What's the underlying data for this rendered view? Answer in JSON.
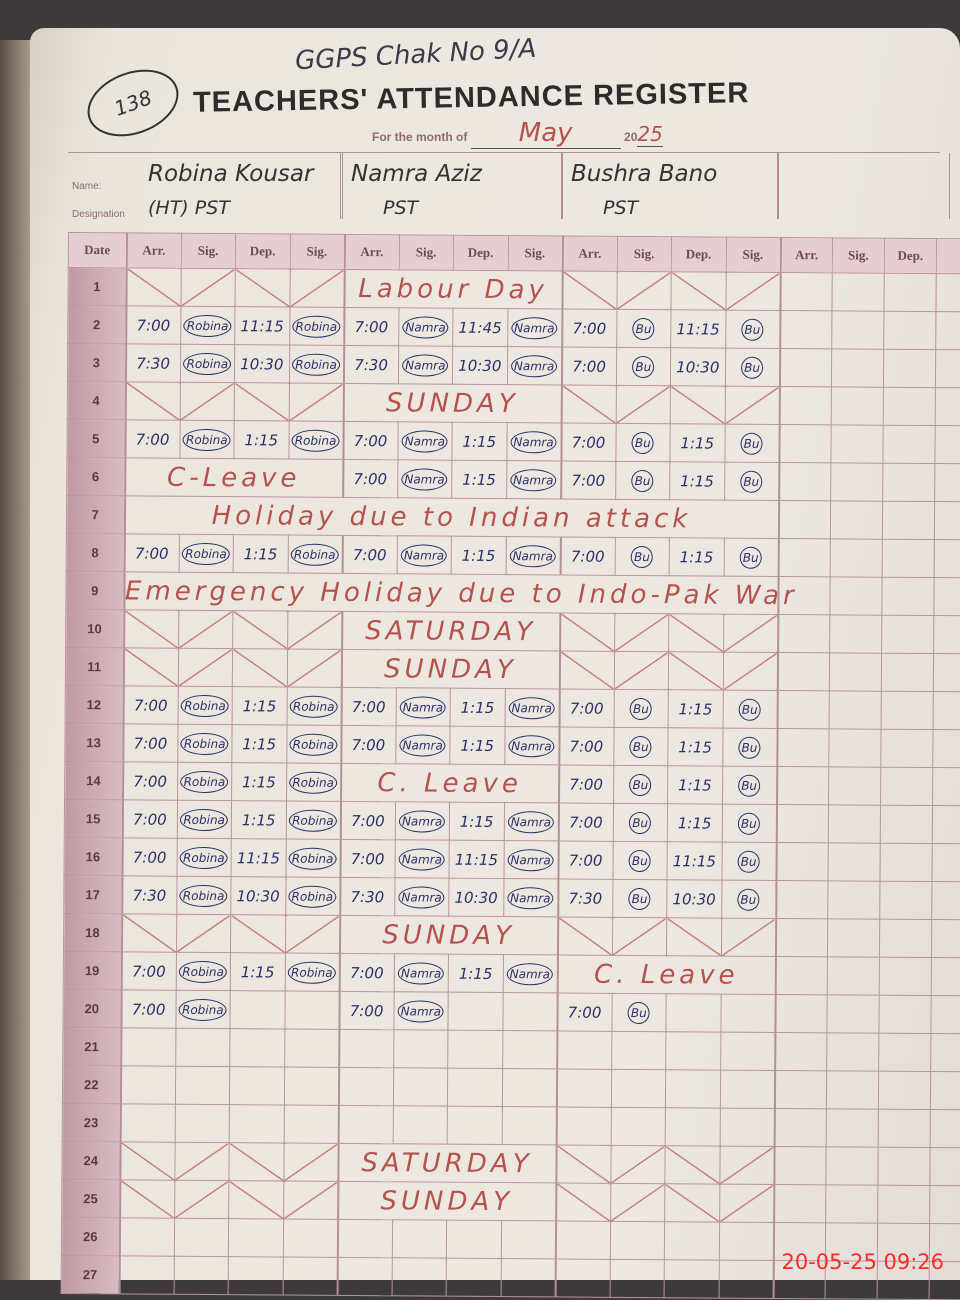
{
  "header": {
    "school": "GGPS Chak No 9/A",
    "register_no": "138",
    "title": "TEACHERS' ATTENDANCE REGISTER",
    "month_label": "For the month of",
    "month": "May",
    "year_prefix": "20",
    "year": "25",
    "name_label": "Name:",
    "designation_label": "Designation"
  },
  "teachers": [
    {
      "name": "Robina Kousar",
      "designation": "(HT) PST"
    },
    {
      "name": "Namra Aziz",
      "designation": "PST"
    },
    {
      "name": "Bushra Bano",
      "designation": "PST"
    },
    {
      "name": "",
      "designation": ""
    }
  ],
  "columns": {
    "date": "Date",
    "group": [
      "Arr.",
      "Sig.",
      "Dep.",
      "Sig."
    ],
    "last_group": [
      "Arr.",
      "Sig.",
      "Dep."
    ]
  },
  "rows": [
    {
      "date": "1",
      "segs": [
        {
          "x": 4
        },
        {
          "note": "Labour Day",
          "span": 4
        },
        {
          "x": 4
        }
      ]
    },
    {
      "date": "2",
      "segs": [
        {
          "v": [
            "7:00",
            "Robina",
            "11:15",
            "Robina"
          ]
        },
        {
          "v": [
            "7:00",
            "Namra",
            "11:45",
            "Namra"
          ]
        },
        {
          "v": [
            "7:00",
            "Bu",
            "11:15",
            "Bu"
          ]
        }
      ]
    },
    {
      "date": "3",
      "segs": [
        {
          "v": [
            "7:30",
            "Robina",
            "10:30",
            "Robina"
          ]
        },
        {
          "v": [
            "7:30",
            "Namra",
            "10:30",
            "Namra"
          ]
        },
        {
          "v": [
            "7:00",
            "Bu",
            "10:30",
            "Bu"
          ]
        }
      ]
    },
    {
      "date": "4",
      "segs": [
        {
          "x": 4
        },
        {
          "note": "SUNDAY",
          "span": 4
        },
        {
          "x": 4
        }
      ]
    },
    {
      "date": "5",
      "segs": [
        {
          "v": [
            "7:00",
            "Robina",
            "1:15",
            "Robina"
          ]
        },
        {
          "v": [
            "7:00",
            "Namra",
            "1:15",
            "Namra"
          ]
        },
        {
          "v": [
            "7:00",
            "Bu",
            "1:15",
            "Bu"
          ]
        }
      ]
    },
    {
      "date": "6",
      "segs": [
        {
          "note": "C-Leave",
          "span": 4
        },
        {
          "v": [
            "7:00",
            "Namra",
            "1:15",
            "Namra"
          ]
        },
        {
          "v": [
            "7:00",
            "Bu",
            "1:15",
            "Bu"
          ]
        }
      ]
    },
    {
      "date": "7",
      "segs": [
        {
          "note": "Holiday due to Indian attack",
          "span": 12
        }
      ]
    },
    {
      "date": "8",
      "segs": [
        {
          "v": [
            "7:00",
            "Robina",
            "1:15",
            "Robina"
          ]
        },
        {
          "v": [
            "7:00",
            "Namra",
            "1:15",
            "Namra"
          ]
        },
        {
          "v": [
            "7:00",
            "Bu",
            "1:15",
            "Bu"
          ]
        }
      ]
    },
    {
      "date": "9",
      "segs": [
        {
          "note": "Emergency Holiday due to Indo-Pak War",
          "span": 12
        }
      ]
    },
    {
      "date": "10",
      "segs": [
        {
          "x": 4
        },
        {
          "note": "SATURDAY",
          "span": 4
        },
        {
          "x": 4
        }
      ]
    },
    {
      "date": "11",
      "segs": [
        {
          "x": 4
        },
        {
          "note": "SUNDAY",
          "span": 4
        },
        {
          "x": 4
        }
      ]
    },
    {
      "date": "12",
      "segs": [
        {
          "v": [
            "7:00",
            "Robina",
            "1:15",
            "Robina"
          ]
        },
        {
          "v": [
            "7:00",
            "Namra",
            "1:15",
            "Namra"
          ]
        },
        {
          "v": [
            "7:00",
            "Bu",
            "1:15",
            "Bu"
          ]
        }
      ]
    },
    {
      "date": "13",
      "segs": [
        {
          "v": [
            "7:00",
            "Robina",
            "1:15",
            "Robina"
          ]
        },
        {
          "v": [
            "7:00",
            "Namra",
            "1:15",
            "Namra"
          ]
        },
        {
          "v": [
            "7:00",
            "Bu",
            "1:15",
            "Bu"
          ]
        }
      ]
    },
    {
      "date": "14",
      "segs": [
        {
          "v": [
            "7:00",
            "Robina",
            "1:15",
            "Robina"
          ]
        },
        {
          "note": "C. Leave",
          "span": 4
        },
        {
          "v": [
            "7:00",
            "Bu",
            "1:15",
            "Bu"
          ]
        }
      ]
    },
    {
      "date": "15",
      "segs": [
        {
          "v": [
            "7:00",
            "Robina",
            "1:15",
            "Robina"
          ]
        },
        {
          "v": [
            "7:00",
            "Namra",
            "1:15",
            "Namra"
          ]
        },
        {
          "v": [
            "7:00",
            "Bu",
            "1:15",
            "Bu"
          ]
        }
      ]
    },
    {
      "date": "16",
      "segs": [
        {
          "v": [
            "7:00",
            "Robina",
            "11:15",
            "Robina"
          ]
        },
        {
          "v": [
            "7:00",
            "Namra",
            "11:15",
            "Namra"
          ]
        },
        {
          "v": [
            "7:00",
            "Bu",
            "11:15",
            "Bu"
          ]
        }
      ]
    },
    {
      "date": "17",
      "segs": [
        {
          "v": [
            "7:30",
            "Robina",
            "10:30",
            "Robina"
          ]
        },
        {
          "v": [
            "7:30",
            "Namra",
            "10:30",
            "Namra"
          ]
        },
        {
          "v": [
            "7:30",
            "Bu",
            "10:30",
            "Bu"
          ]
        }
      ]
    },
    {
      "date": "18",
      "segs": [
        {
          "x": 4
        },
        {
          "note": "SUNDAY",
          "span": 4
        },
        {
          "x": 4
        }
      ]
    },
    {
      "date": "19",
      "segs": [
        {
          "v": [
            "7:00",
            "Robina",
            "1:15",
            "Robina"
          ]
        },
        {
          "v": [
            "7:00",
            "Namra",
            "1:15",
            "Namra"
          ]
        },
        {
          "note": "C. Leave",
          "span": 4
        }
      ]
    },
    {
      "date": "20",
      "segs": [
        {
          "v": [
            "7:00",
            "Robina",
            "",
            ""
          ]
        },
        {
          "v": [
            "7:00",
            "Namra",
            "",
            ""
          ]
        },
        {
          "v": [
            "7:00",
            "Bu",
            "",
            ""
          ]
        }
      ]
    },
    {
      "date": "21",
      "segs": []
    },
    {
      "date": "22",
      "segs": []
    },
    {
      "date": "23",
      "segs": []
    },
    {
      "date": "24",
      "segs": [
        {
          "x": 4
        },
        {
          "note": "SATURDAY",
          "span": 4
        },
        {
          "x": 4
        }
      ]
    },
    {
      "date": "25",
      "segs": [
        {
          "x": 4
        },
        {
          "note": "SUNDAY",
          "span": 4
        },
        {
          "x": 4
        }
      ]
    },
    {
      "date": "26",
      "segs": []
    },
    {
      "date": "27",
      "segs": []
    }
  ],
  "camera_timestamp": "20-05-25  09:26",
  "colors": {
    "red_ink": "#b5524d",
    "blue_ink": "#2b2f68",
    "grid": "#bb939a"
  }
}
